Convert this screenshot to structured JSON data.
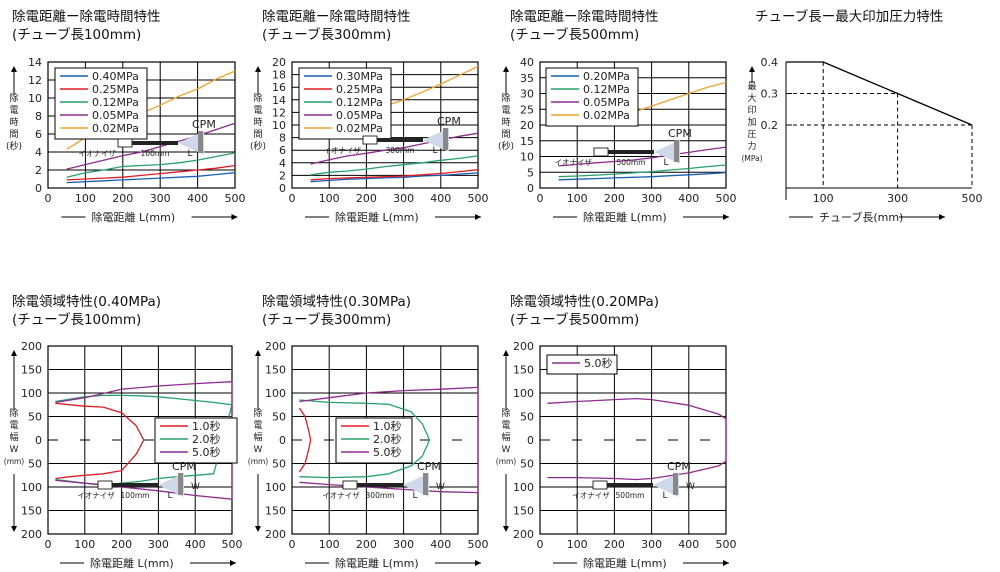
{
  "colors": {
    "blue": "#1a5fb4",
    "red": "#e01b24",
    "green": "#26a269",
    "purple": "#8e2b8e",
    "orange": "#f0a030",
    "grid": "#000000"
  },
  "chart_data": [
    {
      "id": "t1",
      "type": "line",
      "title1": "除電距離ー除電時間特性",
      "title2": "(チューブ長100mm)",
      "xlabel": "除電距離 L(mm)",
      "ylabel": "除電時間(秒)",
      "xlim": [
        0,
        500
      ],
      "ylim": [
        0,
        14
      ],
      "xticks": [
        "0",
        "100",
        "200",
        "300",
        "400",
        "500"
      ],
      "yticks": [
        "2",
        "4",
        "6",
        "8",
        "10",
        "12",
        "14"
      ],
      "series": [
        {
          "name": "0.40MPa",
          "color": "blue",
          "x": [
            50,
            100,
            150,
            200,
            250,
            300,
            350,
            400,
            450,
            500
          ],
          "y": [
            0.6,
            0.7,
            0.8,
            0.9,
            1.0,
            1.1,
            1.2,
            1.3,
            1.5,
            1.7
          ]
        },
        {
          "name": "0.25MPa",
          "color": "red",
          "x": [
            50,
            100,
            150,
            200,
            250,
            300,
            350,
            400,
            450,
            500
          ],
          "y": [
            0.9,
            1.0,
            1.1,
            1.2,
            1.4,
            1.6,
            1.8,
            2.0,
            2.2,
            2.5
          ]
        },
        {
          "name": "0.12MPa",
          "color": "green",
          "x": [
            50,
            100,
            150,
            200,
            250,
            300,
            350,
            400,
            450,
            500
          ],
          "y": [
            1.2,
            1.7,
            2.0,
            2.4,
            2.5,
            2.6,
            2.8,
            3.1,
            3.5,
            3.9
          ]
        },
        {
          "name": "0.05MPa",
          "color": "purple",
          "x": [
            50,
            100,
            150,
            200,
            250,
            300,
            350,
            400,
            450,
            500
          ],
          "y": [
            2.1,
            2.6,
            3.1,
            3.6,
            4.0,
            4.6,
            5.2,
            5.8,
            6.5,
            7.2
          ]
        },
        {
          "name": "0.02MPa",
          "color": "orange",
          "x": [
            50,
            100,
            150,
            200,
            250,
            300,
            350,
            400,
            450,
            500
          ],
          "y": [
            4.3,
            5.6,
            6.6,
            7.6,
            8.3,
            9.2,
            10.2,
            11.0,
            12.1,
            13.0
          ]
        }
      ],
      "inset": {
        "cpm": "CPM",
        "ionizer": "イオナイザ",
        "dist": "100mm",
        "L": "L"
      }
    },
    {
      "id": "t2",
      "type": "line",
      "title1": "除電距離ー除電時間特性",
      "title2": "(チューブ長300mm)",
      "xlabel": "除電距離 L(mm)",
      "ylabel": "除電時間(秒)",
      "xlim": [
        0,
        500
      ],
      "ylim": [
        0,
        20
      ],
      "xticks": [
        "0",
        "100",
        "200",
        "300",
        "400",
        "500"
      ],
      "yticks": [
        "2",
        "4",
        "6",
        "8",
        "10",
        "12",
        "14",
        "16",
        "18",
        "20"
      ],
      "series": [
        {
          "name": "0.30MPa",
          "color": "blue",
          "x": [
            50,
            100,
            150,
            200,
            250,
            300,
            350,
            400,
            450,
            500
          ],
          "y": [
            1.0,
            1.2,
            1.4,
            1.5,
            1.6,
            1.7,
            1.9,
            2.0,
            2.2,
            2.4
          ]
        },
        {
          "name": "0.25MPa",
          "color": "red",
          "x": [
            50,
            100,
            150,
            200,
            250,
            300,
            350,
            400,
            450,
            500
          ],
          "y": [
            1.3,
            1.5,
            1.6,
            1.7,
            1.8,
            1.9,
            2.1,
            2.3,
            2.6,
            2.9
          ]
        },
        {
          "name": "0.12MPa",
          "color": "green",
          "x": [
            50,
            100,
            150,
            200,
            250,
            300,
            350,
            400,
            450,
            500
          ],
          "y": [
            2.1,
            2.5,
            2.7,
            3.0,
            3.4,
            3.7,
            4.0,
            4.4,
            4.7,
            5.1
          ]
        },
        {
          "name": "0.05MPa",
          "color": "purple",
          "x": [
            50,
            100,
            150,
            200,
            250,
            300,
            350,
            400,
            450,
            500
          ],
          "y": [
            3.8,
            4.5,
            5.1,
            5.5,
            6.0,
            6.4,
            7.0,
            7.6,
            8.2,
            8.7
          ]
        },
        {
          "name": "0.02MPa",
          "color": "orange",
          "x": [
            50,
            100,
            150,
            200,
            250,
            300,
            350,
            400,
            450,
            500
          ],
          "y": [
            9.4,
            10.1,
            11.0,
            11.8,
            13.0,
            14.0,
            15.2,
            16.5,
            17.9,
            19.3
          ]
        }
      ],
      "inset": {
        "cpm": "CPM",
        "ionizer": "イオナイザ",
        "dist": "300mm",
        "L": "L"
      }
    },
    {
      "id": "t3",
      "type": "line",
      "title1": "除電距離ー除電時間特性",
      "title2": "(チューブ長500mm)",
      "xlabel": "除電距離 L(mm)",
      "ylabel": "除電時間(秒)",
      "xlim": [
        0,
        500
      ],
      "ylim": [
        0,
        40
      ],
      "xticks": [
        "0",
        "100",
        "200",
        "300",
        "400",
        "500"
      ],
      "yticks": [
        "5",
        "10",
        "15",
        "20",
        "25",
        "30",
        "35",
        "40"
      ],
      "series": [
        {
          "name": "0.20MPa",
          "color": "blue",
          "x": [
            50,
            100,
            150,
            200,
            250,
            300,
            350,
            400,
            450,
            500
          ],
          "y": [
            2.6,
            2.8,
            3.0,
            3.2,
            3.4,
            3.6,
            3.9,
            4.2,
            4.5,
            4.9
          ]
        },
        {
          "name": "0.12MPa",
          "color": "green",
          "x": [
            50,
            100,
            150,
            200,
            250,
            300,
            350,
            400,
            450,
            500
          ],
          "y": [
            3.6,
            3.8,
            4.1,
            4.4,
            4.8,
            5.2,
            5.7,
            6.2,
            6.8,
            7.3
          ]
        },
        {
          "name": "0.05MPa",
          "color": "purple",
          "x": [
            50,
            100,
            150,
            200,
            250,
            300,
            350,
            400,
            450,
            500
          ],
          "y": [
            7.0,
            7.5,
            8.0,
            8.4,
            8.9,
            9.6,
            10.5,
            11.3,
            12.2,
            13.0
          ]
        },
        {
          "name": "0.02MPa",
          "color": "orange",
          "x": [
            50,
            100,
            150,
            200,
            250,
            300,
            350,
            400,
            450,
            500
          ],
          "y": [
            20.0,
            20.6,
            21.5,
            22.5,
            24.0,
            26.0,
            28.0,
            30.0,
            32.0,
            33.5
          ]
        }
      ],
      "inset": {
        "cpm": "CPM",
        "ionizer": "イオナイザ",
        "dist": "500mm",
        "L": "L"
      }
    },
    {
      "id": "t4",
      "type": "line",
      "title1": "チューブ長ー最大印加圧力特性",
      "title2": "",
      "xlabel": "チューブ長(mm)",
      "ylabel": "最大印加圧力",
      "yunit": "(MPa)",
      "xlim": [
        0,
        500
      ],
      "ylim": [
        0,
        0.4
      ],
      "xticks": [
        "100",
        "300",
        "500"
      ],
      "xtick_values": [
        100,
        300,
        500
      ],
      "yticks": [
        "0.2",
        "0.3",
        "0.4"
      ],
      "ytick_values": [
        0.2,
        0.3,
        0.4
      ],
      "series": [
        {
          "name": "max",
          "color": "black",
          "x": [
            0,
            100,
            300,
            500
          ],
          "y": [
            0.4,
            0.4,
            0.3,
            0.2
          ]
        }
      ]
    },
    {
      "id": "b1",
      "type": "line",
      "title1": "除電領域特性(0.40MPa)",
      "title2": "(チューブ長100mm)",
      "xlabel": "除電距離 L(mm)",
      "ylabel": "除電幅W",
      "yunit": "(mm)",
      "xlim": [
        0,
        500
      ],
      "ylim": [
        -200,
        200
      ],
      "xticks": [
        "0",
        "100",
        "200",
        "300",
        "400",
        "500"
      ],
      "yticks": [
        "200",
        "150",
        "100",
        "50",
        "0",
        "50",
        "100",
        "150",
        "200"
      ],
      "series": [
        {
          "name": "1.0秒",
          "color": "red",
          "x": [
            20,
            60,
            100,
            150,
            200,
            240,
            260,
            240,
            200,
            150,
            100,
            60,
            20
          ],
          "y": [
            78,
            75,
            72,
            70,
            58,
            30,
            0,
            -30,
            -65,
            -72,
            -75,
            -78,
            -82
          ]
        },
        {
          "name": "2.0秒",
          "color": "green",
          "x": [
            20,
            100,
            150,
            200,
            250,
            300,
            350,
            400,
            450,
            500,
            450,
            400,
            350,
            300,
            250,
            200,
            150,
            100,
            20
          ],
          "y": [
            82,
            92,
            95,
            95,
            94,
            92,
            88,
            84,
            80,
            75,
            -72,
            -75,
            -78,
            -82,
            -88,
            -92,
            -95,
            -92,
            -84
          ]
        },
        {
          "name": "5.0秒",
          "color": "purple",
          "x": [
            20,
            100,
            200,
            300,
            400,
            500,
            500,
            400,
            300,
            200,
            100,
            20
          ],
          "y": [
            80,
            90,
            108,
            115,
            120,
            124,
            -126,
            -118,
            -108,
            -100,
            -92,
            -86
          ]
        }
      ],
      "inset": {
        "cpm": "CPM",
        "ionizer": "イオナイザ",
        "dist": "100mm",
        "L": "L",
        "W": "W"
      }
    },
    {
      "id": "b2",
      "type": "line",
      "title1": "除電領域特性(0.30MPa)",
      "title2": "(チューブ長300mm)",
      "xlabel": "除電距離 L(mm)",
      "ylabel": "除電幅W",
      "yunit": "(mm)",
      "xlim": [
        0,
        500
      ],
      "ylim": [
        -200,
        200
      ],
      "xticks": [
        "0",
        "100",
        "200",
        "300",
        "400",
        "500"
      ],
      "yticks": [
        "200",
        "150",
        "100",
        "50",
        "0",
        "50",
        "100",
        "150",
        "200"
      ],
      "series": [
        {
          "name": "1.0秒",
          "color": "red",
          "x": [
            20,
            35,
            45,
            50,
            45,
            35,
            20
          ],
          "y": [
            68,
            50,
            20,
            0,
            -20,
            -50,
            -68
          ]
        },
        {
          "name": "2.0秒",
          "color": "green",
          "x": [
            20,
            100,
            200,
            260,
            320,
            350,
            370,
            350,
            320,
            260,
            200,
            100,
            20
          ],
          "y": [
            85,
            80,
            78,
            76,
            60,
            35,
            0,
            -35,
            -55,
            -72,
            -78,
            -80,
            -78
          ]
        },
        {
          "name": "5.0秒",
          "color": "purple",
          "x": [
            20,
            100,
            200,
            300,
            400,
            500,
            500,
            400,
            300,
            200,
            100,
            20
          ],
          "y": [
            82,
            90,
            100,
            105,
            108,
            112,
            -112,
            -110,
            -105,
            -100,
            -95,
            -90
          ]
        }
      ],
      "inset": {
        "cpm": "CPM",
        "ionizer": "イオナイザ",
        "dist": "300mm",
        "L": "L",
        "W": "W"
      }
    },
    {
      "id": "b3",
      "type": "line",
      "title1": "除電領域特性(0.20MPa)",
      "title2": "(チューブ長500mm)",
      "xlabel": "除電距離 L(mm)",
      "ylabel": "除電幅W",
      "yunit": "(mm)",
      "xlim": [
        0,
        500
      ],
      "ylim": [
        -200,
        200
      ],
      "xticks": [
        "0",
        "100",
        "200",
        "300",
        "400",
        "500"
      ],
      "yticks": [
        "200",
        "150",
        "100",
        "50",
        "0",
        "50",
        "100",
        "150",
        "200"
      ],
      "series": [
        {
          "name": "5.0秒",
          "color": "purple",
          "x": [
            20,
            100,
            200,
            260,
            300,
            400,
            480,
            500,
            500,
            480,
            400,
            300,
            260,
            200,
            100,
            20
          ],
          "y": [
            78,
            82,
            86,
            88,
            86,
            74,
            55,
            45,
            -45,
            -55,
            -70,
            -82,
            -84,
            -82,
            -80,
            -80
          ]
        }
      ],
      "inset": {
        "cpm": "CPM",
        "ionizer": "イオナイザ",
        "dist": "500mm",
        "L": "L",
        "W": "W"
      }
    }
  ]
}
